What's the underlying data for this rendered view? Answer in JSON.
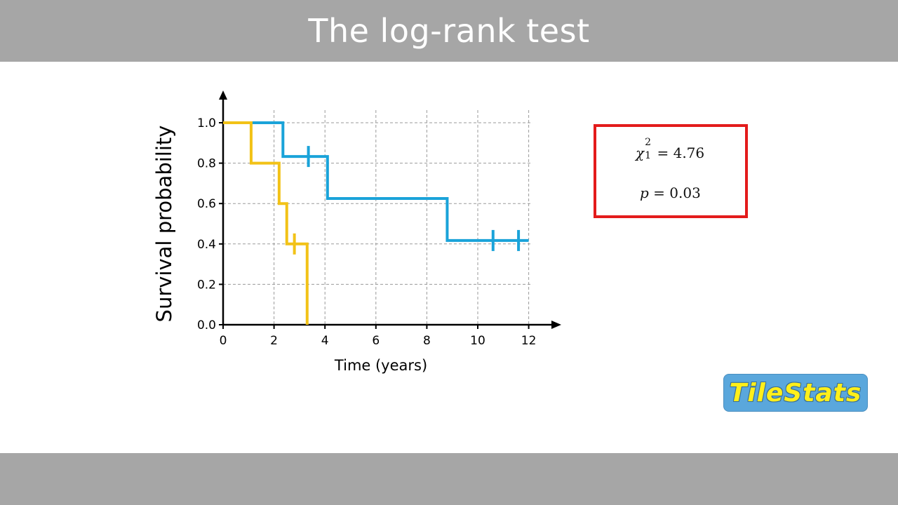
{
  "header": {
    "title": "The log-rank test"
  },
  "chart_data": {
    "type": "line",
    "subtype": "kaplan-meier-step",
    "title": "",
    "xlabel": "Time (years)",
    "ylabel": "Survival probability",
    "xlim": [
      0,
      12.5
    ],
    "ylim": [
      0,
      1.05
    ],
    "xticks": [
      0,
      2,
      4,
      6,
      8,
      10,
      12
    ],
    "yticks": [
      0.0,
      0.2,
      0.4,
      0.6,
      0.8,
      1.0
    ],
    "ytick_labels": [
      "0.0",
      "0.2",
      "0.4",
      "0.6",
      "0.8",
      "1.0"
    ],
    "xtick_labels": [
      "0",
      "2",
      "4",
      "6",
      "8",
      "10",
      "12"
    ],
    "grid": true,
    "series": [
      {
        "color": "#1aa3d9",
        "steps": [
          [
            0,
            1.0
          ],
          [
            2.35,
            0.833
          ],
          [
            4.1,
            0.625
          ],
          [
            8.8,
            0.417
          ],
          [
            12.0,
            0.417
          ]
        ],
        "censored": [
          [
            3.35,
            0.833
          ],
          [
            10.6,
            0.417
          ],
          [
            11.6,
            0.417
          ]
        ]
      },
      {
        "color": "#f2c217",
        "steps": [
          [
            0,
            1.0
          ],
          [
            1.1,
            0.8
          ],
          [
            2.2,
            0.6
          ],
          [
            2.5,
            0.4
          ],
          [
            3.3,
            0.0
          ]
        ],
        "censored": [
          [
            2.8,
            0.4
          ]
        ]
      }
    ]
  },
  "stats": {
    "chi_symbol": "χ",
    "chi_sup": "2",
    "chi_sub": "1",
    "chi_value": "= 4.76",
    "p_symbol": "p",
    "p_value": "= 0.03"
  },
  "logo": {
    "text": "TileStats",
    "bg_color": "#5aa7dc",
    "text_color": "#ffef1a"
  }
}
